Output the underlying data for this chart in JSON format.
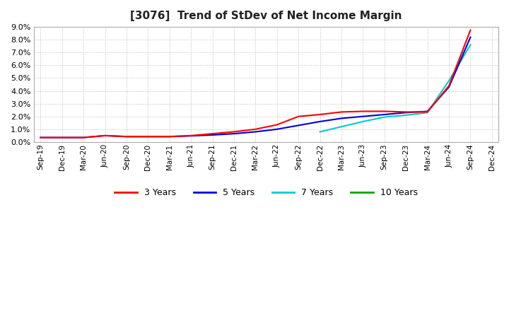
{
  "title": "[3076]  Trend of StDev of Net Income Margin",
  "background_color": "#ffffff",
  "grid_color": "#bbbbbb",
  "ylim": [
    0.0,
    0.09
  ],
  "yticks": [
    0.0,
    0.01,
    0.02,
    0.03,
    0.04,
    0.05,
    0.06,
    0.07,
    0.08,
    0.09
  ],
  "series": {
    "3 Years": {
      "color": "#ff0000",
      "zorder": 4,
      "data": [
        [
          "Sep-19",
          0.0035
        ],
        [
          "Dec-19",
          0.0035
        ],
        [
          "Mar-20",
          0.0035
        ],
        [
          "Jun-20",
          0.005
        ],
        [
          "Sep-20",
          0.0043
        ],
        [
          "Dec-20",
          0.0043
        ],
        [
          "Mar-21",
          0.0043
        ],
        [
          "Jun-21",
          0.005
        ],
        [
          "Sep-21",
          0.0065
        ],
        [
          "Dec-21",
          0.008
        ],
        [
          "Mar-22",
          0.01
        ],
        [
          "Jun-22",
          0.0135
        ],
        [
          "Sep-22",
          0.02
        ],
        [
          "Dec-22",
          0.0215
        ],
        [
          "Mar-23",
          0.0235
        ],
        [
          "Jun-23",
          0.024
        ],
        [
          "Sep-23",
          0.024
        ],
        [
          "Dec-23",
          0.0235
        ],
        [
          "Mar-24",
          0.0235
        ],
        [
          "Jun-24",
          0.044
        ],
        [
          "Sep-24",
          0.0875
        ],
        [
          "Dec-24",
          null
        ]
      ]
    },
    "5 Years": {
      "color": "#0000dd",
      "zorder": 3,
      "data": [
        [
          "Sep-19",
          0.0035
        ],
        [
          "Dec-19",
          0.0035
        ],
        [
          "Mar-20",
          0.0035
        ],
        [
          "Jun-20",
          0.005
        ],
        [
          "Sep-20",
          0.0042
        ],
        [
          "Dec-20",
          0.0042
        ],
        [
          "Mar-21",
          0.0042
        ],
        [
          "Jun-21",
          0.0048
        ],
        [
          "Sep-21",
          0.0055
        ],
        [
          "Dec-21",
          0.0065
        ],
        [
          "Mar-22",
          0.008
        ],
        [
          "Jun-22",
          0.01
        ],
        [
          "Sep-22",
          0.013
        ],
        [
          "Dec-22",
          0.016
        ],
        [
          "Mar-23",
          0.0185
        ],
        [
          "Jun-23",
          0.02
        ],
        [
          "Sep-23",
          0.0215
        ],
        [
          "Dec-23",
          0.023
        ],
        [
          "Mar-24",
          0.024
        ],
        [
          "Jun-24",
          0.043
        ],
        [
          "Sep-24",
          0.082
        ],
        [
          "Dec-24",
          null
        ]
      ]
    },
    "7 Years": {
      "color": "#00cccc",
      "zorder": 2,
      "data": [
        [
          "Sep-19",
          null
        ],
        [
          "Dec-19",
          null
        ],
        [
          "Mar-20",
          null
        ],
        [
          "Jun-20",
          null
        ],
        [
          "Sep-20",
          null
        ],
        [
          "Dec-20",
          null
        ],
        [
          "Mar-21",
          null
        ],
        [
          "Jun-21",
          null
        ],
        [
          "Sep-21",
          null
        ],
        [
          "Dec-21",
          null
        ],
        [
          "Mar-22",
          null
        ],
        [
          "Jun-22",
          null
        ],
        [
          "Sep-22",
          null
        ],
        [
          "Dec-22",
          0.008
        ],
        [
          "Mar-23",
          0.012
        ],
        [
          "Jun-23",
          0.016
        ],
        [
          "Sep-23",
          0.0195
        ],
        [
          "Dec-23",
          0.021
        ],
        [
          "Mar-24",
          0.023
        ],
        [
          "Jun-24",
          0.048
        ],
        [
          "Sep-24",
          0.076
        ],
        [
          "Dec-24",
          null
        ]
      ]
    },
    "10 Years": {
      "color": "#00aa00",
      "zorder": 1,
      "data": [
        [
          "Sep-19",
          null
        ],
        [
          "Dec-19",
          null
        ],
        [
          "Mar-20",
          null
        ],
        [
          "Jun-20",
          null
        ],
        [
          "Sep-20",
          null
        ],
        [
          "Dec-20",
          null
        ],
        [
          "Mar-21",
          null
        ],
        [
          "Jun-21",
          null
        ],
        [
          "Sep-21",
          null
        ],
        [
          "Dec-21",
          null
        ],
        [
          "Mar-22",
          null
        ],
        [
          "Jun-22",
          null
        ],
        [
          "Sep-22",
          null
        ],
        [
          "Dec-22",
          null
        ],
        [
          "Mar-23",
          null
        ],
        [
          "Jun-23",
          null
        ],
        [
          "Sep-23",
          null
        ],
        [
          "Dec-23",
          null
        ],
        [
          "Mar-24",
          null
        ],
        [
          "Jun-24",
          null
        ],
        [
          "Sep-24",
          null
        ],
        [
          "Dec-24",
          null
        ]
      ]
    }
  },
  "xtick_labels": [
    "Sep-19",
    "Dec-19",
    "Mar-20",
    "Jun-20",
    "Sep-20",
    "Dec-20",
    "Mar-21",
    "Jun-21",
    "Sep-21",
    "Dec-21",
    "Mar-22",
    "Jun-22",
    "Sep-22",
    "Dec-22",
    "Mar-23",
    "Jun-23",
    "Sep-23",
    "Dec-23",
    "Mar-24",
    "Jun-24",
    "Sep-24",
    "Dec-24"
  ],
  "legend_entries": [
    "3 Years",
    "5 Years",
    "7 Years",
    "10 Years"
  ],
  "legend_colors": [
    "#ff0000",
    "#0000dd",
    "#00cccc",
    "#00aa00"
  ]
}
